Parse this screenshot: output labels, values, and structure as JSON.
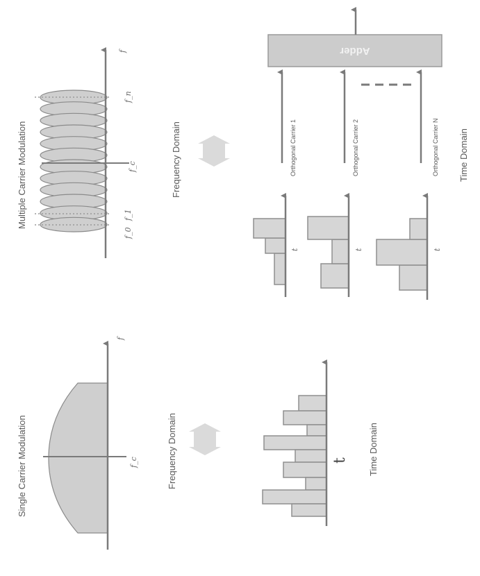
{
  "single": {
    "title": "Single Carrier Modulation",
    "freq_label": "Frequency Domain",
    "time_label": "Time Domain",
    "fc": "f_c",
    "f": "f",
    "t": "t"
  },
  "multi": {
    "title": "Multiple Carrier Modulation",
    "freq_label": "Frequency Domain",
    "time_label": "Time Domain",
    "fc": "f_c",
    "f": "f",
    "f0": "f_0",
    "f1": "f_1",
    "fn": "f_n",
    "t": "t",
    "carriers": [
      "Orthogonal Carrier 1",
      "Orthogonal Carrier 2",
      "Orthogonal Carrier N"
    ],
    "adder": "Adder"
  },
  "colors": {
    "line": "#7a7a7a",
    "fill": "#d6d6d6",
    "arrow": "#dadada"
  }
}
